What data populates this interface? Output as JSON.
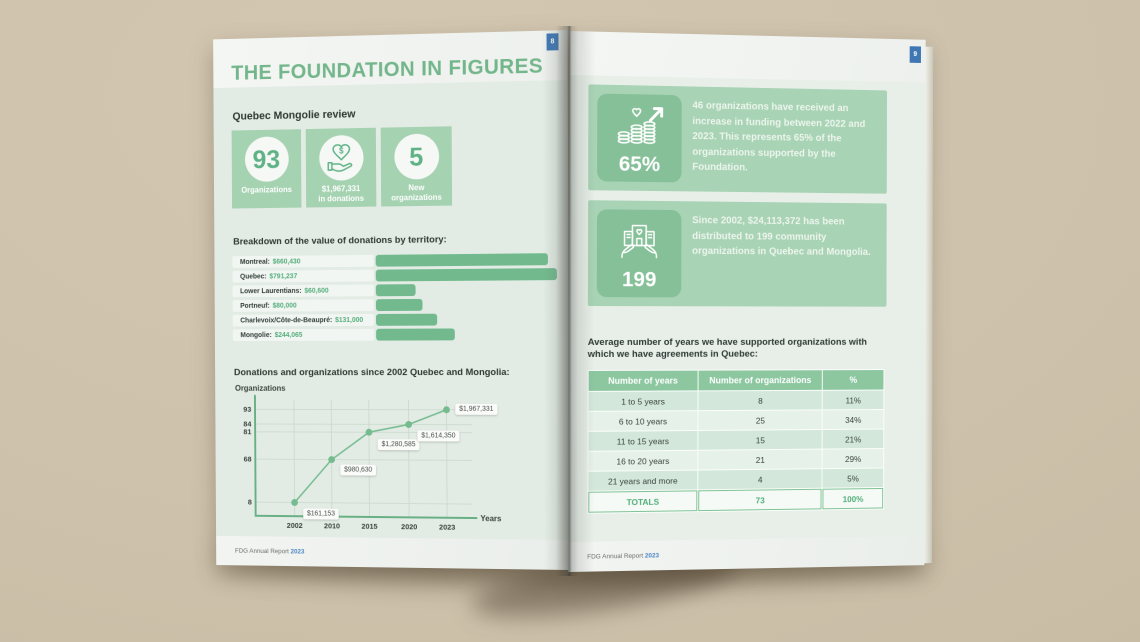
{
  "colors": {
    "background": "#cdc1ab",
    "accent_green": "#74bb8f",
    "card_green": "#a5d2b1",
    "tile_green": "#85c098",
    "table_header_green": "#8cc7a0",
    "badge_blue": "#3e77b4",
    "year_blue": "#4c86c6",
    "title_green": "#73b68b"
  },
  "left_page": {
    "badge": "8",
    "title": "THE FOUNDATION IN FIGURES",
    "review_heading": "Quebec Mongolie review",
    "stat_cards": [
      {
        "value": "93",
        "lines": [
          "Organizations"
        ]
      },
      {
        "icon": "hand-heart-dollar-icon",
        "lines": [
          "$1,967,331",
          "in donations"
        ]
      },
      {
        "value": "5",
        "lines": [
          "New",
          "organizations"
        ]
      }
    ],
    "bars_heading": "Breakdown of the value of donations by territory:",
    "chart_heading": "Donations and organizations since 2002 Quebec and Mongolia:"
  },
  "right_page": {
    "badge": "9",
    "info_boxes": [
      {
        "icon": "coins-growth-icon",
        "stat": "65%",
        "text": "46 organizations have received an increase in funding between 2022 and 2023. This represents 65% of the organizations supported by the Foundation."
      },
      {
        "icon": "hands-building-icon",
        "stat": "199",
        "text": "Since 2002, $24,113,372 has been distributed to 199 community organizations in Quebec and Mongolia."
      }
    ],
    "table": {
      "heading": "Average number of years we have supported organizations with which we have agreements in Quebec:",
      "columns": [
        "Number of years",
        "Number of organizations",
        "%"
      ],
      "rows": [
        [
          "1 to 5 years",
          "8",
          "11%"
        ],
        [
          "6 to 10 years",
          "25",
          "34%"
        ],
        [
          "11 to 15 years",
          "15",
          "21%"
        ],
        [
          "16 to 20 years",
          "21",
          "29%"
        ],
        [
          "21 years and more",
          "4",
          "5%"
        ]
      ],
      "totals": [
        "TOTALS",
        "73",
        "100%"
      ]
    }
  },
  "footer": {
    "label": "FDG Annual Report",
    "year": "2023"
  },
  "chart_data": [
    {
      "type": "bar",
      "title": "Breakdown of the value of donations by territory:",
      "orientation": "horizontal",
      "categories": [
        "Montreal",
        "Quebec",
        "Lower Laurentians",
        "Portneuf",
        "Charlevoix/Côte-de-Beaupré",
        "Mongolie"
      ],
      "values": [
        660430,
        791237,
        60600,
        80000,
        131000,
        244065
      ],
      "value_labels": [
        "$660,430",
        "$791,237",
        "$60,600",
        "$80,000",
        "$131,000",
        "$244,065"
      ],
      "bar_pct": [
        95,
        100,
        22,
        26,
        34,
        44
      ],
      "bar_color": "#72ba8e"
    },
    {
      "type": "line",
      "title": "Donations and organizations since 2002 Quebec and Mongolia:",
      "xlabel": "Years",
      "ylabel": "Organizations",
      "x": [
        2002,
        2010,
        2015,
        2020,
        2023
      ],
      "y": [
        8,
        68,
        81,
        84,
        93
      ],
      "point_labels": [
        "$161,153",
        "$980,630",
        "$1,280,585",
        "$1,614,350",
        "$1,967,331"
      ],
      "y_ticks": [
        93,
        84,
        81,
        68,
        8
      ],
      "grid": true,
      "line_color": "#74bb8f",
      "axis_color": "#68b084"
    }
  ]
}
